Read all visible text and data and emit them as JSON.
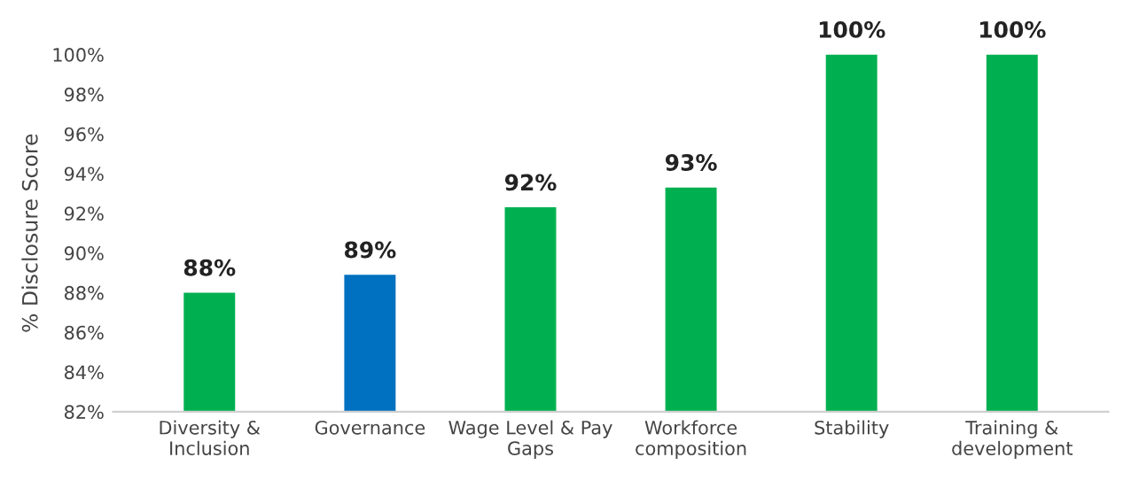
{
  "chart_data": {
    "type": "bar",
    "ylabel": "% Disclosure Score",
    "categories": [
      "Diversity &\nInclusion",
      "Governance",
      "Wage Level & Pay\nGaps",
      "Workforce\ncomposition",
      "Stability",
      "Training &\ndevelopment"
    ],
    "values": [
      88.0,
      88.9,
      92.3,
      93.3,
      100,
      100
    ],
    "colors": [
      "#00b050",
      "#0070c0",
      "#00b050",
      "#00b050",
      "#00b050",
      "#00b050"
    ],
    "value_labels": [
      "88%",
      "89%",
      "92%",
      "93%",
      "100%",
      "100%"
    ],
    "ylim": [
      82,
      100
    ],
    "yticks": [
      {
        "value": 82,
        "label": "82%"
      },
      {
        "value": 84,
        "label": "84%"
      },
      {
        "value": 86,
        "label": "86%"
      },
      {
        "value": 88,
        "label": "88%"
      },
      {
        "value": 90,
        "label": "90%"
      },
      {
        "value": 92,
        "label": "92%"
      },
      {
        "value": 94,
        "label": "94%"
      },
      {
        "value": 96,
        "label": "96%"
      },
      {
        "value": 98,
        "label": "98%"
      },
      {
        "value": 100,
        "label": "100%"
      }
    ],
    "grid": false,
    "legend": false
  }
}
